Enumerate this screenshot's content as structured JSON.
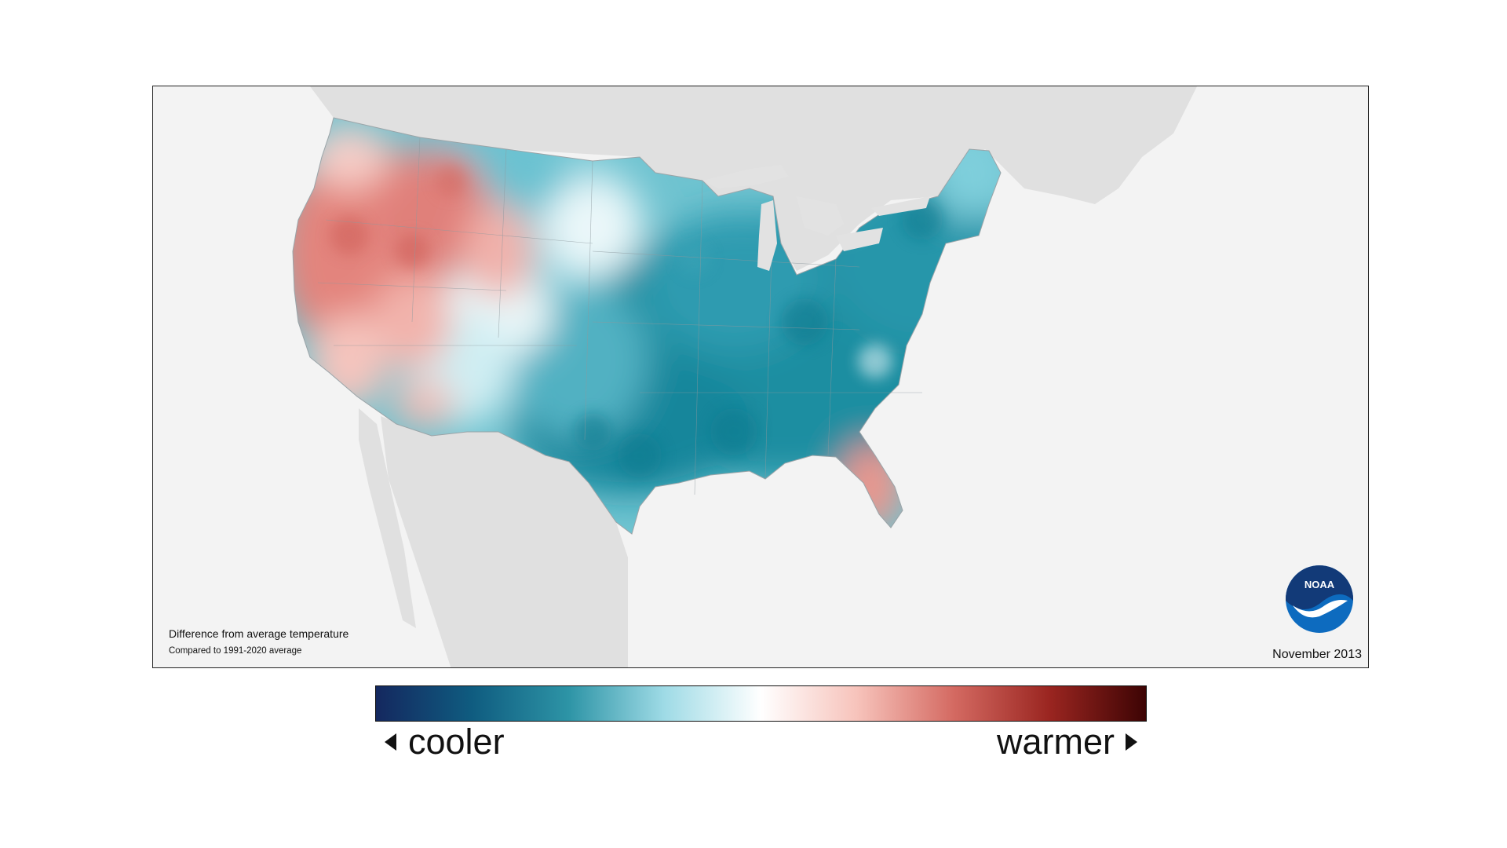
{
  "map": {
    "caption_title": "Difference from average temperature",
    "caption_subtitle": "Compared to 1991-2020 average",
    "date": "November 2013",
    "logo_text": "NOAA"
  },
  "legend": {
    "cooler_label": "cooler",
    "warmer_label": "warmer",
    "gradient_colors": [
      "#14285f",
      "#0f5c80",
      "#2d94a6",
      "#9fdbe6",
      "#ffffff",
      "#f7c3bb",
      "#d46a62",
      "#9a2520",
      "#3d0404"
    ]
  },
  "anomaly_colors": {
    "warm": "#e07d78",
    "cool": "#1e8fa3",
    "neutral": "#ffffff"
  }
}
